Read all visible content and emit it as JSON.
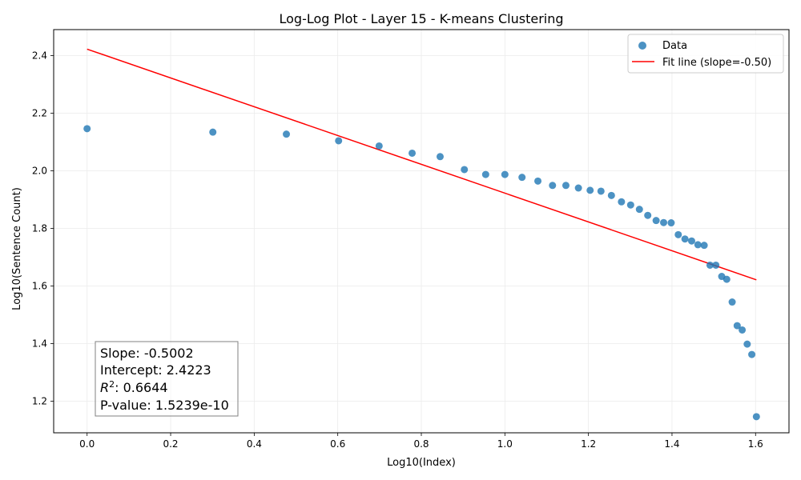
{
  "chart_data": {
    "type": "scatter",
    "title": "Log-Log Plot - Layer 15 - K-means Clustering",
    "xlabel": "Log10(Index)",
    "ylabel": "Log10(Sentence Count)",
    "xlim": [
      -0.08,
      1.68
    ],
    "ylim": [
      1.09,
      2.49
    ],
    "x_ticks": [
      "0.0",
      "0.2",
      "0.4",
      "0.6",
      "0.8",
      "1.0",
      "1.2",
      "1.4",
      "1.6"
    ],
    "x_tick_values": [
      0.0,
      0.2,
      0.4,
      0.6,
      0.8,
      1.0,
      1.2,
      1.4,
      1.6
    ],
    "y_ticks": [
      "1.2",
      "1.4",
      "1.6",
      "1.8",
      "2.0",
      "2.2",
      "2.4"
    ],
    "y_tick_values": [
      1.2,
      1.4,
      1.6,
      1.8,
      2.0,
      2.2,
      2.4
    ],
    "grid": true,
    "legend_position": "top-right",
    "series": [
      {
        "name": "Data",
        "kind": "scatter",
        "color": "#1f77b4",
        "points": [
          [
            0.0,
            2.146
          ],
          [
            0.301,
            2.134
          ],
          [
            0.477,
            2.127
          ],
          [
            0.602,
            2.104
          ],
          [
            0.699,
            2.086
          ],
          [
            0.778,
            2.061
          ],
          [
            0.845,
            2.049
          ],
          [
            0.903,
            2.004
          ],
          [
            0.954,
            1.987
          ],
          [
            1.0,
            1.987
          ],
          [
            1.041,
            1.977
          ],
          [
            1.079,
            1.964
          ],
          [
            1.114,
            1.949
          ],
          [
            1.146,
            1.949
          ],
          [
            1.176,
            1.94
          ],
          [
            1.204,
            1.932
          ],
          [
            1.23,
            1.929
          ],
          [
            1.255,
            1.914
          ],
          [
            1.279,
            1.892
          ],
          [
            1.301,
            1.881
          ],
          [
            1.322,
            1.866
          ],
          [
            1.342,
            1.845
          ],
          [
            1.362,
            1.827
          ],
          [
            1.38,
            1.82
          ],
          [
            1.398,
            1.819
          ],
          [
            1.415,
            1.778
          ],
          [
            1.431,
            1.763
          ],
          [
            1.447,
            1.756
          ],
          [
            1.462,
            1.743
          ],
          [
            1.477,
            1.741
          ],
          [
            1.491,
            1.672
          ],
          [
            1.505,
            1.672
          ],
          [
            1.519,
            1.633
          ],
          [
            1.531,
            1.623
          ],
          [
            1.544,
            1.544
          ],
          [
            1.556,
            1.462
          ],
          [
            1.568,
            1.447
          ],
          [
            1.58,
            1.398
          ],
          [
            1.591,
            1.362
          ],
          [
            1.602,
            1.146
          ]
        ]
      },
      {
        "name": "Fit line (slope=-0.50)",
        "kind": "line",
        "color": "#ff0000",
        "points": [
          [
            0.0,
            2.4223
          ],
          [
            1.602,
            1.621
          ]
        ]
      }
    ],
    "annotation": {
      "slope_text": "Slope: -0.5002",
      "intercept_text": "Intercept: 2.4223",
      "r2_label": "R",
      "r2_value": ": 0.6644",
      "pvalue_text": "P-value: 1.5239e-10"
    }
  }
}
